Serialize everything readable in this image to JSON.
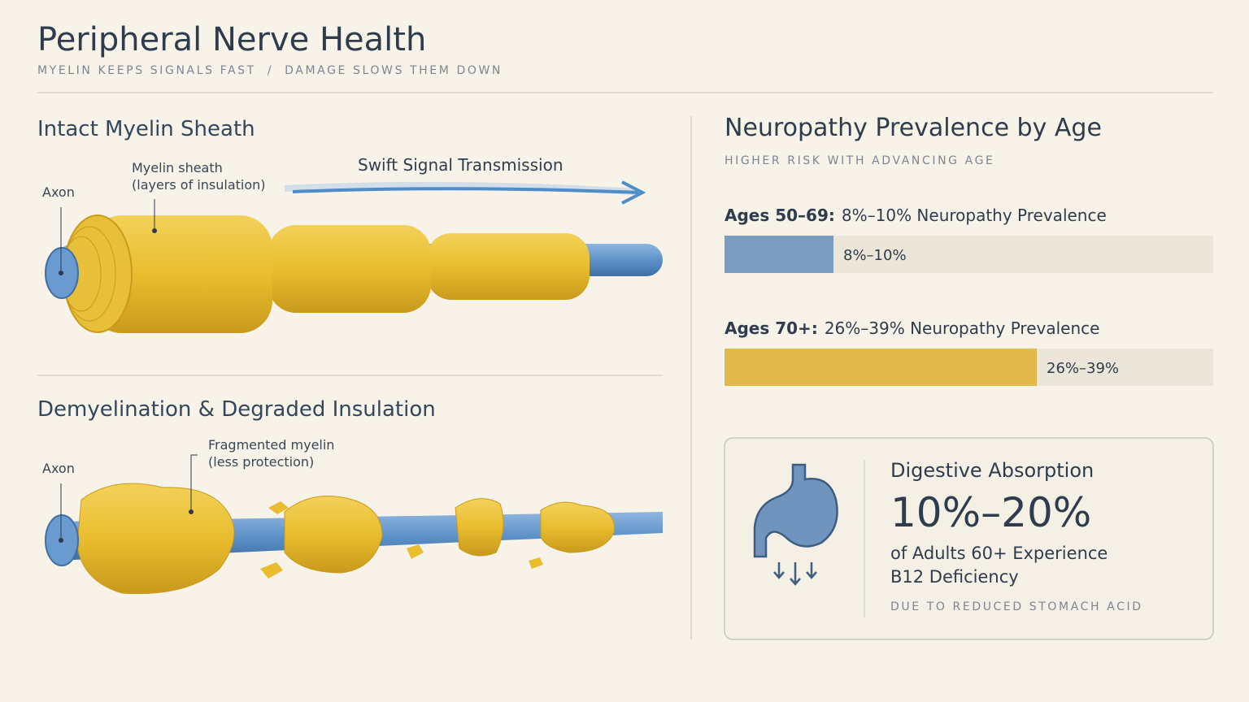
{
  "header": {
    "title": "Peripheral Nerve Health",
    "subtitle_left": "MYELIN KEEPS SIGNALS FAST",
    "separator": "/",
    "subtitle_right": "DAMAGE SLOWS THEM DOWN"
  },
  "intact": {
    "title": "Intact Myelin Sheath",
    "axon_label": "Axon",
    "sheath_label": [
      "Myelin sheath",
      "(layers of insulation)"
    ],
    "signal_label": "Swift Signal Transmission"
  },
  "damaged": {
    "title": "Demyelination & Degraded Insulation",
    "axon_label": "Axon",
    "fragment_label": [
      "Fragmented myelin",
      "(less protection)"
    ]
  },
  "prevalence": {
    "title": "Neuropathy Prevalence by Age",
    "subtitle": "HIGHER RISK WITH ADVANCING AGE",
    "groups": [
      {
        "age": "Ages 50–69:",
        "description": "8%–10% Neuropathy Prevalence",
        "bar_label": "8%–10%"
      },
      {
        "age": "Ages 70+:",
        "description": "26%–39% Neuropathy Prevalence",
        "bar_label": "26%–39%"
      }
    ]
  },
  "absorption": {
    "title": "Digestive Absorption",
    "value": "10%–20%",
    "description": [
      "of Adults 60+ Experience",
      "B12 Deficiency"
    ],
    "note": "DUE TO REDUCED STOMACH ACID"
  }
}
